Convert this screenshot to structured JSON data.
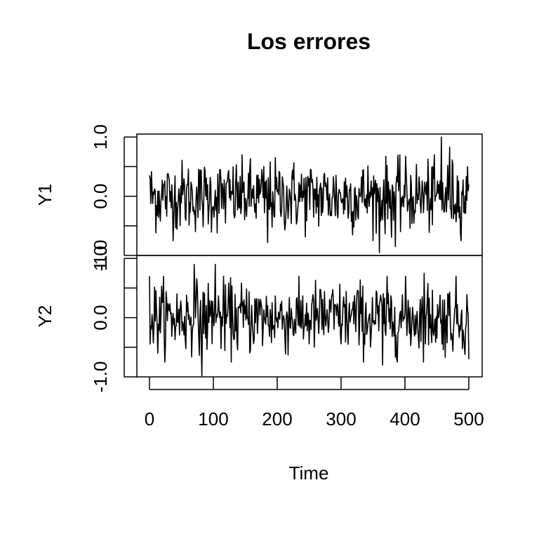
{
  "chart_data": {
    "type": "line",
    "title": "Los errores",
    "xlabel": "Time",
    "xlim": [
      0,
      500
    ],
    "x_ticks": [
      "0",
      "100",
      "200",
      "300",
      "400",
      "500"
    ],
    "grid": false,
    "legend": "none",
    "line_color": "#000000",
    "panels": [
      {
        "name": "Y1",
        "ylim": [
          -1.0,
          1.05
        ],
        "y_tick_labels": [
          "-1.0",
          "0.0",
          "1.0"
        ],
        "y_ticks": [
          -1.0,
          -0.5,
          0.0,
          0.5,
          1.0
        ],
        "y_start": 0.35,
        "y_end": 0.2,
        "y_sd": 0.3,
        "extremes": [
          {
            "x": 360,
            "y": -0.95
          },
          {
            "x": 457,
            "y": 1.0
          },
          {
            "x": 470,
            "y": 0.83
          },
          {
            "x": 385,
            "y": -0.85
          },
          {
            "x": 185,
            "y": -0.78
          }
        ]
      },
      {
        "name": "Y2",
        "ylim": [
          -1.0,
          1.05
        ],
        "y_tick_labels": [
          "-1.0",
          "0.0",
          "1.0"
        ],
        "y_ticks": [
          -1.0,
          -0.5,
          0.0,
          0.5,
          1.0
        ],
        "y_start": 0.7,
        "y_end": -0.7,
        "y_sd": 0.3,
        "extremes": [
          {
            "x": 82,
            "y": -0.98
          },
          {
            "x": 70,
            "y": 0.9
          },
          {
            "x": 103,
            "y": 0.9
          },
          {
            "x": 430,
            "y": 0.75
          },
          {
            "x": 365,
            "y": -0.8
          }
        ]
      }
    ]
  }
}
